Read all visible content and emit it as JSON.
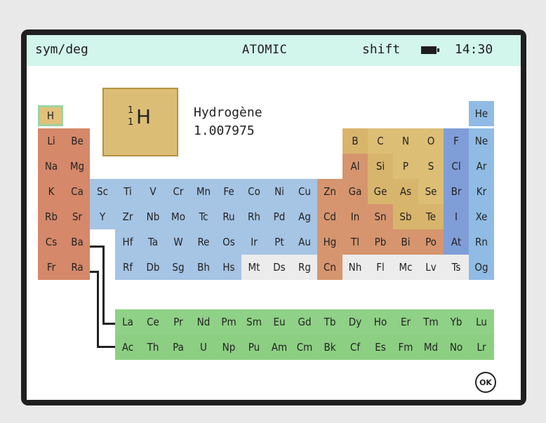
{
  "status_bar": {
    "left": "sym/deg",
    "title": "ATOMIC",
    "shift": "shift",
    "battery_icon": "battery-icon",
    "time": "14:30"
  },
  "selected_element": {
    "symbol": "H",
    "mass_number": "1",
    "atomic_number": "1",
    "name": "Hydrogène",
    "mass": "1.007975"
  },
  "ok_button": "OK",
  "colors": {
    "status_bar": "#d2f5ec",
    "alkali": "#d5886a",
    "transition": "#a6c4e4",
    "post_transition": "#d6956e",
    "metalloid": "#d8b56c",
    "halogen": "#7f9ed8",
    "noble": "#90bbe4",
    "unknown": "#ececec",
    "lanthanide_actinide": "#8fd186"
  },
  "elements": [
    {
      "s": "H",
      "r": 1,
      "c": 1,
      "g": "h"
    },
    {
      "s": "He",
      "r": 1,
      "c": 18,
      "g": "noble"
    },
    {
      "s": "Li",
      "r": 2,
      "c": 1,
      "g": "alkali"
    },
    {
      "s": "Be",
      "r": 2,
      "c": 2,
      "g": "alkali"
    },
    {
      "s": "B",
      "r": 2,
      "c": 13,
      "g": "metalloid"
    },
    {
      "s": "C",
      "r": 2,
      "c": 14,
      "g": "nonmetal"
    },
    {
      "s": "N",
      "r": 2,
      "c": 15,
      "g": "nonmetal"
    },
    {
      "s": "O",
      "r": 2,
      "c": 16,
      "g": "nonmetal"
    },
    {
      "s": "F",
      "r": 2,
      "c": 17,
      "g": "halogen"
    },
    {
      "s": "Ne",
      "r": 2,
      "c": 18,
      "g": "noble"
    },
    {
      "s": "Na",
      "r": 3,
      "c": 1,
      "g": "alkali"
    },
    {
      "s": "Mg",
      "r": 3,
      "c": 2,
      "g": "alkali"
    },
    {
      "s": "Al",
      "r": 3,
      "c": 13,
      "g": "post"
    },
    {
      "s": "Si",
      "r": 3,
      "c": 14,
      "g": "metalloid"
    },
    {
      "s": "P",
      "r": 3,
      "c": 15,
      "g": "nonmetal"
    },
    {
      "s": "S",
      "r": 3,
      "c": 16,
      "g": "nonmetal"
    },
    {
      "s": "Cl",
      "r": 3,
      "c": 17,
      "g": "halogen"
    },
    {
      "s": "Ar",
      "r": 3,
      "c": 18,
      "g": "noble"
    },
    {
      "s": "K",
      "r": 4,
      "c": 1,
      "g": "alkali"
    },
    {
      "s": "Ca",
      "r": 4,
      "c": 2,
      "g": "alkali"
    },
    {
      "s": "Sc",
      "r": 4,
      "c": 3,
      "g": "tm"
    },
    {
      "s": "Ti",
      "r": 4,
      "c": 4,
      "g": "tm"
    },
    {
      "s": "V",
      "r": 4,
      "c": 5,
      "g": "tm"
    },
    {
      "s": "Cr",
      "r": 4,
      "c": 6,
      "g": "tm"
    },
    {
      "s": "Mn",
      "r": 4,
      "c": 7,
      "g": "tm"
    },
    {
      "s": "Fe",
      "r": 4,
      "c": 8,
      "g": "tm"
    },
    {
      "s": "Co",
      "r": 4,
      "c": 9,
      "g": "tm"
    },
    {
      "s": "Ni",
      "r": 4,
      "c": 10,
      "g": "tm"
    },
    {
      "s": "Cu",
      "r": 4,
      "c": 11,
      "g": "tm"
    },
    {
      "s": "Zn",
      "r": 4,
      "c": 12,
      "g": "post"
    },
    {
      "s": "Ga",
      "r": 4,
      "c": 13,
      "g": "post"
    },
    {
      "s": "Ge",
      "r": 4,
      "c": 14,
      "g": "metalloid"
    },
    {
      "s": "As",
      "r": 4,
      "c": 15,
      "g": "metalloid"
    },
    {
      "s": "Se",
      "r": 4,
      "c": 16,
      "g": "nonmetal"
    },
    {
      "s": "Br",
      "r": 4,
      "c": 17,
      "g": "halogen"
    },
    {
      "s": "Kr",
      "r": 4,
      "c": 18,
      "g": "noble"
    },
    {
      "s": "Rb",
      "r": 5,
      "c": 1,
      "g": "alkali"
    },
    {
      "s": "Sr",
      "r": 5,
      "c": 2,
      "g": "alkali"
    },
    {
      "s": "Y",
      "r": 5,
      "c": 3,
      "g": "tm"
    },
    {
      "s": "Zr",
      "r": 5,
      "c": 4,
      "g": "tm"
    },
    {
      "s": "Nb",
      "r": 5,
      "c": 5,
      "g": "tm"
    },
    {
      "s": "Mo",
      "r": 5,
      "c": 6,
      "g": "tm"
    },
    {
      "s": "Tc",
      "r": 5,
      "c": 7,
      "g": "tm"
    },
    {
      "s": "Ru",
      "r": 5,
      "c": 8,
      "g": "tm"
    },
    {
      "s": "Rh",
      "r": 5,
      "c": 9,
      "g": "tm"
    },
    {
      "s": "Pd",
      "r": 5,
      "c": 10,
      "g": "tm"
    },
    {
      "s": "Ag",
      "r": 5,
      "c": 11,
      "g": "tm"
    },
    {
      "s": "Cd",
      "r": 5,
      "c": 12,
      "g": "post"
    },
    {
      "s": "In",
      "r": 5,
      "c": 13,
      "g": "post"
    },
    {
      "s": "Sn",
      "r": 5,
      "c": 14,
      "g": "post"
    },
    {
      "s": "Sb",
      "r": 5,
      "c": 15,
      "g": "metalloid"
    },
    {
      "s": "Te",
      "r": 5,
      "c": 16,
      "g": "metalloid"
    },
    {
      "s": "I",
      "r": 5,
      "c": 17,
      "g": "halogen"
    },
    {
      "s": "Xe",
      "r": 5,
      "c": 18,
      "g": "noble"
    },
    {
      "s": "Cs",
      "r": 6,
      "c": 1,
      "g": "alkali"
    },
    {
      "s": "Ba",
      "r": 6,
      "c": 2,
      "g": "alkali"
    },
    {
      "s": "Hf",
      "r": 6,
      "c": 4,
      "g": "tm"
    },
    {
      "s": "Ta",
      "r": 6,
      "c": 5,
      "g": "tm"
    },
    {
      "s": "W",
      "r": 6,
      "c": 6,
      "g": "tm"
    },
    {
      "s": "Re",
      "r": 6,
      "c": 7,
      "g": "tm"
    },
    {
      "s": "Os",
      "r": 6,
      "c": 8,
      "g": "tm"
    },
    {
      "s": "Ir",
      "r": 6,
      "c": 9,
      "g": "tm"
    },
    {
      "s": "Pt",
      "r": 6,
      "c": 10,
      "g": "tm"
    },
    {
      "s": "Au",
      "r": 6,
      "c": 11,
      "g": "tm"
    },
    {
      "s": "Hg",
      "r": 6,
      "c": 12,
      "g": "post"
    },
    {
      "s": "Tl",
      "r": 6,
      "c": 13,
      "g": "post"
    },
    {
      "s": "Pb",
      "r": 6,
      "c": 14,
      "g": "post"
    },
    {
      "s": "Bi",
      "r": 6,
      "c": 15,
      "g": "post"
    },
    {
      "s": "Po",
      "r": 6,
      "c": 16,
      "g": "post"
    },
    {
      "s": "At",
      "r": 6,
      "c": 17,
      "g": "halogen"
    },
    {
      "s": "Rn",
      "r": 6,
      "c": 18,
      "g": "noble"
    },
    {
      "s": "Fr",
      "r": 7,
      "c": 1,
      "g": "alkali"
    },
    {
      "s": "Ra",
      "r": 7,
      "c": 2,
      "g": "alkali"
    },
    {
      "s": "Rf",
      "r": 7,
      "c": 4,
      "g": "tm"
    },
    {
      "s": "Db",
      "r": 7,
      "c": 5,
      "g": "tm"
    },
    {
      "s": "Sg",
      "r": 7,
      "c": 6,
      "g": "tm"
    },
    {
      "s": "Bh",
      "r": 7,
      "c": 7,
      "g": "tm"
    },
    {
      "s": "Hs",
      "r": 7,
      "c": 8,
      "g": "tm"
    },
    {
      "s": "Mt",
      "r": 7,
      "c": 9,
      "g": "unknown"
    },
    {
      "s": "Ds",
      "r": 7,
      "c": 10,
      "g": "unknown"
    },
    {
      "s": "Rg",
      "r": 7,
      "c": 11,
      "g": "unknown"
    },
    {
      "s": "Cn",
      "r": 7,
      "c": 12,
      "g": "post"
    },
    {
      "s": "Nh",
      "r": 7,
      "c": 13,
      "g": "unknown"
    },
    {
      "s": "Fl",
      "r": 7,
      "c": 14,
      "g": "unknown"
    },
    {
      "s": "Mc",
      "r": 7,
      "c": 15,
      "g": "unknown"
    },
    {
      "s": "Lv",
      "r": 7,
      "c": 16,
      "g": "unknown"
    },
    {
      "s": "Ts",
      "r": 7,
      "c": 17,
      "g": "unknown"
    },
    {
      "s": "Og",
      "r": 7,
      "c": 18,
      "g": "noble"
    },
    {
      "s": "La",
      "r": 9,
      "c": 4,
      "g": "lanth"
    },
    {
      "s": "Ce",
      "r": 9,
      "c": 5,
      "g": "lanth"
    },
    {
      "s": "Pr",
      "r": 9,
      "c": 6,
      "g": "lanth"
    },
    {
      "s": "Nd",
      "r": 9,
      "c": 7,
      "g": "lanth"
    },
    {
      "s": "Pm",
      "r": 9,
      "c": 8,
      "g": "lanth"
    },
    {
      "s": "Sm",
      "r": 9,
      "c": 9,
      "g": "lanth"
    },
    {
      "s": "Eu",
      "r": 9,
      "c": 10,
      "g": "lanth"
    },
    {
      "s": "Gd",
      "r": 9,
      "c": 11,
      "g": "lanth"
    },
    {
      "s": "Tb",
      "r": 9,
      "c": 12,
      "g": "lanth"
    },
    {
      "s": "Dy",
      "r": 9,
      "c": 13,
      "g": "lanth"
    },
    {
      "s": "Ho",
      "r": 9,
      "c": 14,
      "g": "lanth"
    },
    {
      "s": "Er",
      "r": 9,
      "c": 15,
      "g": "lanth"
    },
    {
      "s": "Tm",
      "r": 9,
      "c": 16,
      "g": "lanth"
    },
    {
      "s": "Yb",
      "r": 9,
      "c": 17,
      "g": "lanth"
    },
    {
      "s": "Lu",
      "r": 9,
      "c": 18,
      "g": "lanth"
    },
    {
      "s": "Ac",
      "r": 10,
      "c": 4,
      "g": "act"
    },
    {
      "s": "Th",
      "r": 10,
      "c": 5,
      "g": "act"
    },
    {
      "s": "Pa",
      "r": 10,
      "c": 6,
      "g": "act"
    },
    {
      "s": "U",
      "r": 10,
      "c": 7,
      "g": "act"
    },
    {
      "s": "Np",
      "r": 10,
      "c": 8,
      "g": "act"
    },
    {
      "s": "Pu",
      "r": 10,
      "c": 9,
      "g": "act"
    },
    {
      "s": "Am",
      "r": 10,
      "c": 10,
      "g": "act"
    },
    {
      "s": "Cm",
      "r": 10,
      "c": 11,
      "g": "act"
    },
    {
      "s": "Bk",
      "r": 10,
      "c": 12,
      "g": "act"
    },
    {
      "s": "Cf",
      "r": 10,
      "c": 13,
      "g": "act"
    },
    {
      "s": "Es",
      "r": 10,
      "c": 14,
      "g": "act"
    },
    {
      "s": "Fm",
      "r": 10,
      "c": 15,
      "g": "act"
    },
    {
      "s": "Md",
      "r": 10,
      "c": 16,
      "g": "act"
    },
    {
      "s": "No",
      "r": 10,
      "c": 17,
      "g": "act"
    },
    {
      "s": "Lr",
      "r": 10,
      "c": 18,
      "g": "act"
    }
  ]
}
